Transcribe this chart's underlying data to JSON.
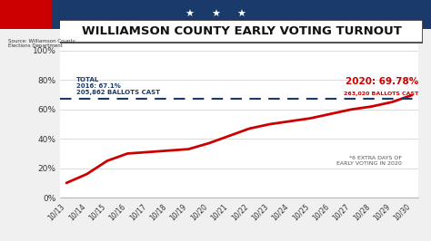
{
  "title": "WILLIAMSON COUNTY EARLY VOTING TURNOUT",
  "source_text": "Source: Williamson County\nElections Department",
  "x_labels": [
    "10/13",
    "10/14",
    "10/15",
    "10/16",
    "10/17",
    "10/18",
    "10/19",
    "10/20",
    "10/21",
    "10/22",
    "10/23",
    "10/24",
    "10/25",
    "10/26",
    "10/27",
    "10/28",
    "10/29",
    "10/30"
  ],
  "red_line_values": [
    10,
    16,
    25,
    30,
    31,
    32,
    33,
    37,
    42,
    47,
    50,
    52,
    54,
    57,
    60,
    62,
    65,
    69.78
  ],
  "dashed_line_value": 67.1,
  "label_2016": "TOTAL\n2016: 67.1%\n205,862 BALLOTS CAST",
  "label_2020_title": "2020: 69.78%",
  "label_2020_sub": "263,020 BALLOTS CAST",
  "label_extra": "*6 EXTRA DAYS OF\nEARLY VOTING IN 2020",
  "ylim": [
    0,
    105
  ],
  "yticks": [
    0,
    20,
    40,
    60,
    80,
    100
  ],
  "ytick_labels": [
    "0%",
    "20%",
    "40%",
    "60%",
    "80%",
    "100%"
  ],
  "bg_color": "#f0f0f0",
  "plot_bg_color": "#ffffff",
  "header_color_left": "#cc0000",
  "header_color_right": "#1a3a6b",
  "red_line_color": "#cc0000",
  "dashed_line_color": "#1a3a6b",
  "title_border_color": "#333333",
  "stars_color": "#ffffff",
  "annotation_2020_color": "#cc0000",
  "annotation_2016_color": "#1a3a6b"
}
